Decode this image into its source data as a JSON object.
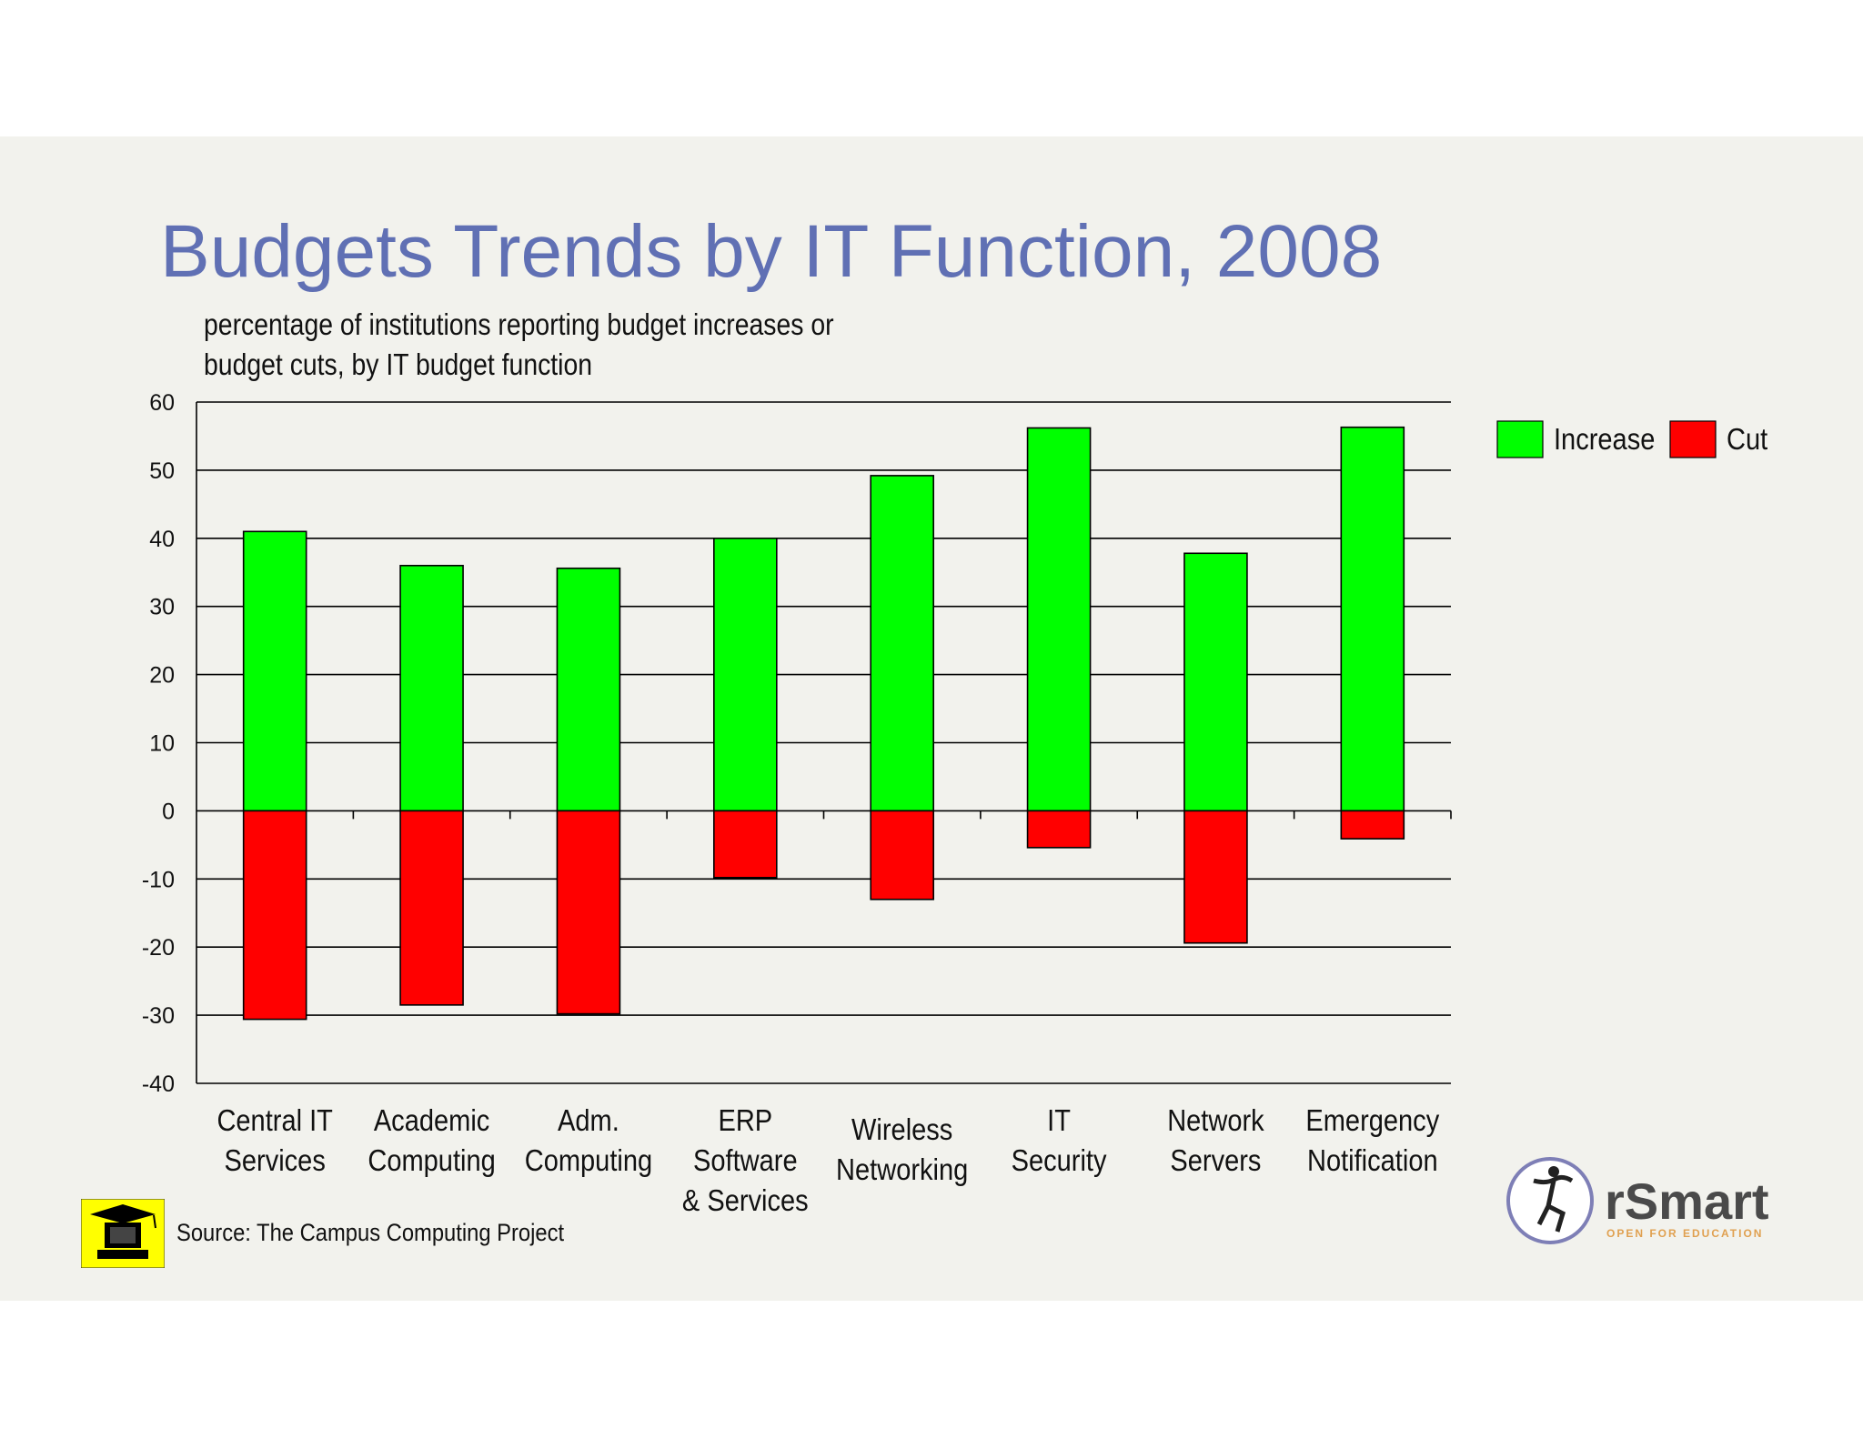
{
  "slide": {
    "title": "Budgets Trends by IT Function, 2008",
    "subtitle": "percentage of institutions reporting budget increases or budget cuts, by IT budget function",
    "source": "Source: The Campus Computing Project",
    "background_color": "#f2f2ed",
    "title_color": "#6070b4",
    "logo_text": "rSmart",
    "logo_tagline": "OPEN FOR EDUCATION"
  },
  "chart_data": {
    "type": "bar",
    "stacked": true,
    "title": "",
    "xlabel": "",
    "ylabel": "",
    "ylim": [
      -40,
      60
    ],
    "yticks": [
      60,
      50,
      40,
      30,
      20,
      10,
      0,
      -10,
      -20,
      -30,
      -40
    ],
    "grid": true,
    "legend_position": "top-right",
    "categories": [
      [
        "Central IT",
        "Services"
      ],
      [
        "Academic",
        "Computing"
      ],
      [
        "Adm.",
        "Computing"
      ],
      [
        "ERP",
        "Software",
        "& Services"
      ],
      [
        "Wireless",
        "Networking"
      ],
      [
        "IT",
        "Security"
      ],
      [
        "Network",
        "Servers"
      ],
      [
        "Emergency",
        "Notification"
      ]
    ],
    "series": [
      {
        "name": "Increase",
        "color": "#00ff00",
        "values": [
          41,
          36,
          35.6,
          40,
          49.2,
          56.2,
          37.8,
          56.3
        ]
      },
      {
        "name": "Cut",
        "color": "#ff0000",
        "values": [
          -30.6,
          -28.5,
          -29.8,
          -9.8,
          -13,
          -5.4,
          -19.4,
          -4.1
        ]
      }
    ]
  }
}
